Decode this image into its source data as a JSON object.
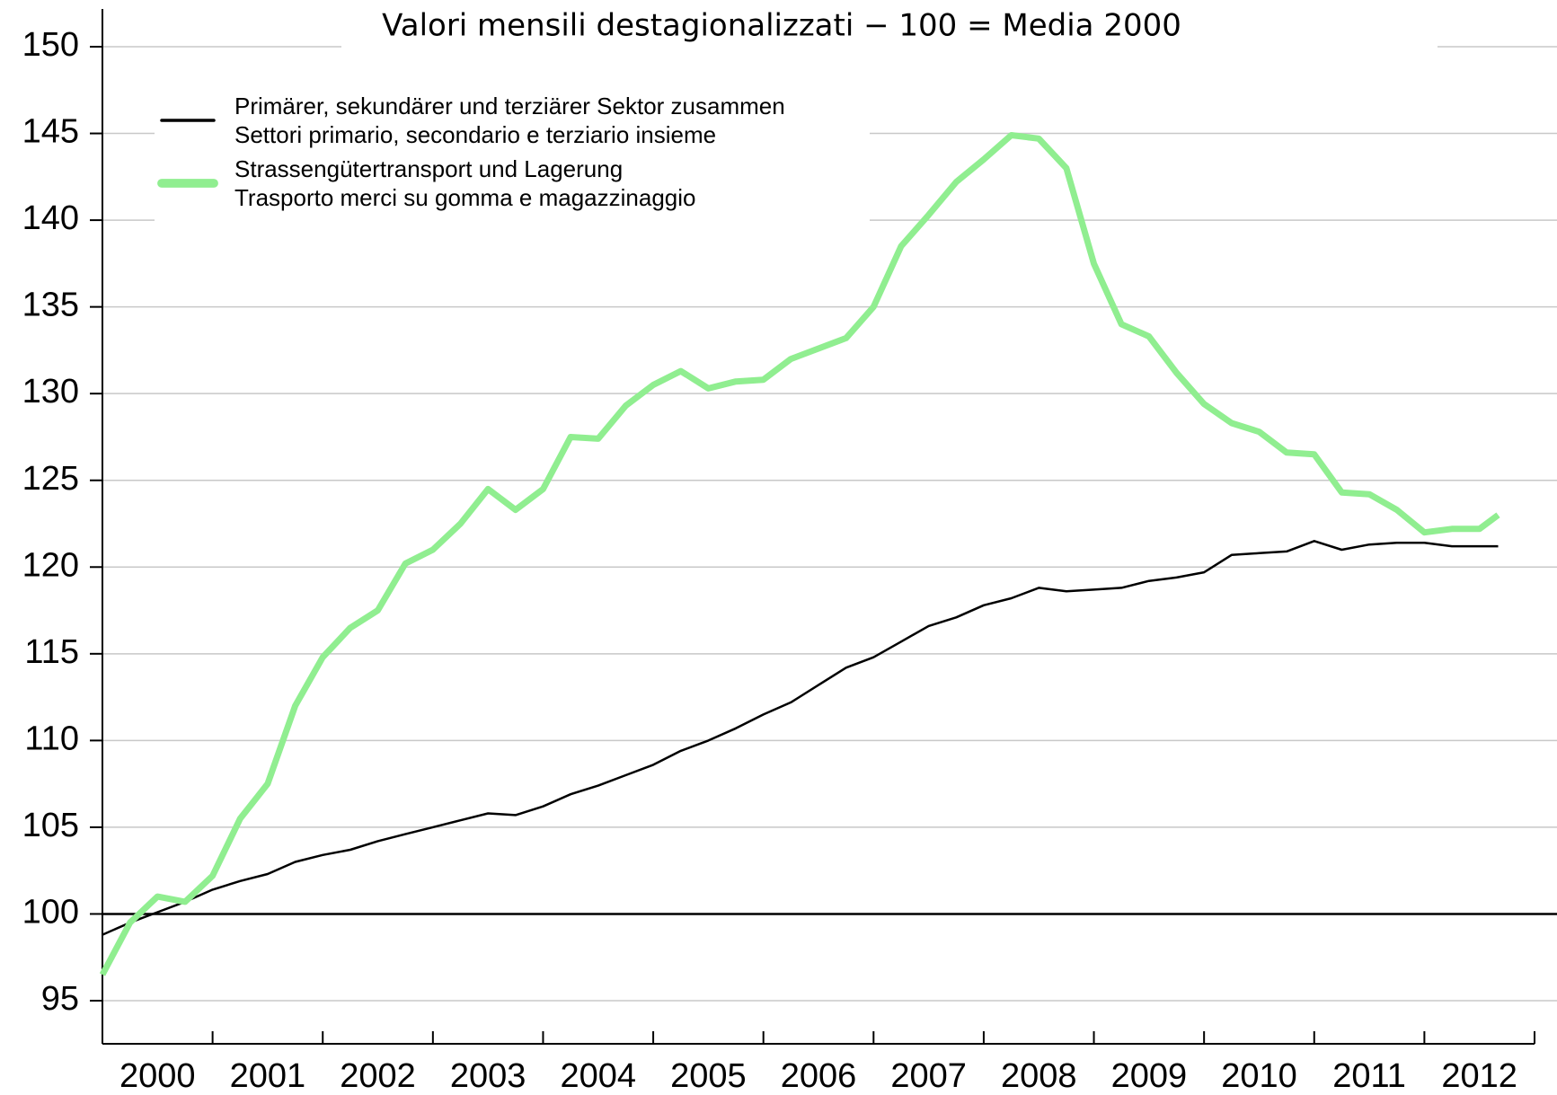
{
  "chart_data": {
    "type": "line",
    "subtitle": "Valori mensili destagionalizzati − 100 = Media 2000",
    "categories": [
      "2000",
      "2001",
      "2002",
      "2003",
      "2004",
      "2005",
      "2006",
      "2007",
      "2008",
      "2009",
      "2010",
      "2011",
      "2012"
    ],
    "x": [
      2000,
      2000.25,
      2000.5,
      2000.75,
      2001,
      2001.25,
      2001.5,
      2001.75,
      2002,
      2002.25,
      2002.5,
      2002.75,
      2003,
      2003.25,
      2003.5,
      2003.75,
      2004,
      2004.25,
      2004.5,
      2004.75,
      2005,
      2005.25,
      2005.5,
      2005.75,
      2006,
      2006.25,
      2006.5,
      2006.75,
      2007,
      2007.25,
      2007.5,
      2007.75,
      2008,
      2008.25,
      2008.5,
      2008.75,
      2009,
      2009.25,
      2009.5,
      2009.75,
      2010,
      2010.25,
      2010.5,
      2010.75,
      2011,
      2011.25,
      2011.5,
      2011.75,
      2012,
      2012.25,
      2012.5,
      2012.67
    ],
    "xlim": [
      2000,
      2013
    ],
    "ylim": [
      95,
      150
    ],
    "yticks": [
      95,
      100,
      105,
      110,
      115,
      120,
      125,
      130,
      135,
      140,
      145,
      150
    ],
    "grid": true,
    "hline": 100,
    "series": [
      {
        "name": [
          "Primärer, sekundärer und terziärer Sektor zusammen",
          "Settori primario, secondario e terziario insieme"
        ],
        "color": "#000000",
        "width": 2.5,
        "values": [
          98.8,
          99.5,
          100.1,
          100.7,
          101.4,
          101.9,
          102.3,
          103.0,
          103.4,
          103.7,
          104.2,
          104.6,
          105.0,
          105.4,
          105.8,
          105.7,
          106.2,
          106.9,
          107.4,
          108.0,
          108.6,
          109.4,
          110.0,
          110.7,
          111.5,
          112.2,
          113.2,
          114.2,
          114.8,
          115.7,
          116.6,
          117.1,
          117.8,
          118.2,
          118.8,
          118.6,
          118.7,
          118.8,
          119.2,
          119.4,
          119.7,
          120.7,
          120.8,
          120.9,
          121.5,
          121.0,
          121.3,
          121.4,
          121.4,
          121.2,
          121.2,
          121.2
        ]
      },
      {
        "name": [
          "Strassengütertransport und Lagerung",
          "Trasporto merci su gomma e magazzinaggio"
        ],
        "color": "#90ee90",
        "width": 7,
        "values": [
          96.5,
          99.5,
          101.0,
          100.7,
          102.2,
          105.5,
          107.5,
          112.0,
          114.8,
          116.5,
          117.5,
          120.2,
          121.0,
          122.5,
          124.5,
          123.3,
          124.5,
          127.5,
          127.4,
          129.3,
          130.5,
          131.3,
          130.3,
          130.7,
          130.8,
          132.0,
          132.6,
          133.2,
          135.0,
          138.5,
          140.3,
          142.2,
          143.5,
          144.9,
          144.7,
          143.0,
          137.5,
          134.0,
          133.3,
          131.2,
          129.4,
          128.3,
          127.8,
          126.6,
          126.5,
          124.3,
          124.2,
          123.3,
          122.0,
          122.2,
          122.2,
          123.0
        ]
      }
    ]
  }
}
